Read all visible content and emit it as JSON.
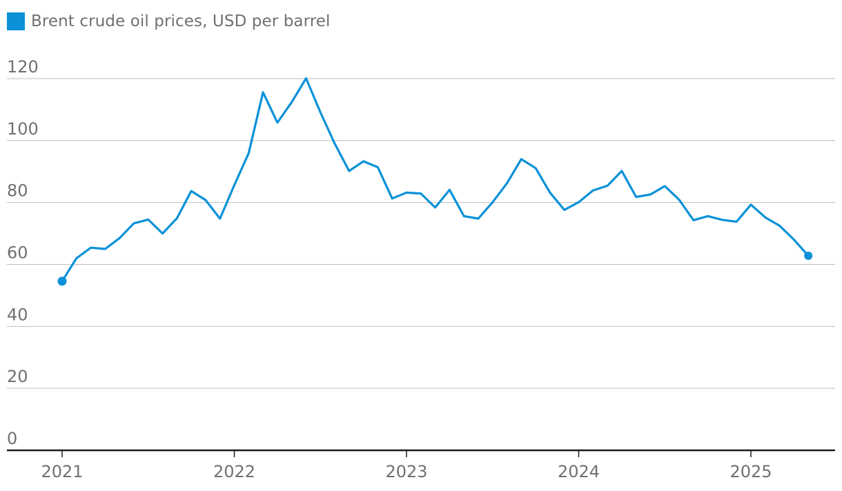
{
  "legend": {
    "label": "Brent crude oil prices, USD per barrel",
    "color": "#0a91d8"
  },
  "chart_data": {
    "type": "line",
    "title": "",
    "xlabel": "",
    "ylabel": "",
    "legend_position": "top-left",
    "grid": true,
    "ylim": [
      0,
      120
    ],
    "y_ticks": [
      "0",
      "20",
      "40",
      "60",
      "80",
      "100",
      "120"
    ],
    "x_ticks": [
      "2021",
      "2022",
      "2023",
      "2024",
      "2025"
    ],
    "series": [
      {
        "name": "Brent crude oil prices, USD per barrel",
        "color": "#0a91d8",
        "x": [
          "2021-01",
          "2021-02",
          "2021-03",
          "2021-04",
          "2021-05",
          "2021-06",
          "2021-07",
          "2021-08",
          "2021-09",
          "2021-10",
          "2021-11",
          "2021-12",
          "2022-01",
          "2022-02",
          "2022-03",
          "2022-04",
          "2022-05",
          "2022-06",
          "2022-07",
          "2022-08",
          "2022-09",
          "2022-10",
          "2022-11",
          "2022-12",
          "2023-01",
          "2023-02",
          "2023-03",
          "2023-04",
          "2023-05",
          "2023-06",
          "2023-07",
          "2023-08",
          "2023-09",
          "2023-10",
          "2023-11",
          "2023-12",
          "2024-01",
          "2024-02",
          "2024-03",
          "2024-04",
          "2024-05",
          "2024-06",
          "2024-07",
          "2024-08",
          "2024-09",
          "2024-10",
          "2024-11",
          "2024-12",
          "2025-01",
          "2025-02",
          "2025-03",
          "2025-04",
          "2025-05"
        ],
        "values": [
          54.6,
          62.0,
          65.4,
          65.0,
          68.5,
          73.3,
          74.5,
          70.0,
          74.9,
          83.7,
          80.8,
          74.8,
          85.6,
          95.9,
          115.6,
          105.8,
          112.4,
          120.1,
          109.1,
          99.0,
          90.2,
          93.3,
          91.4,
          81.3,
          83.2,
          82.9,
          78.4,
          84.1,
          75.6,
          74.8,
          80.1,
          86.2,
          94.0,
          91.1,
          83.2,
          77.6,
          80.1,
          83.9,
          85.4,
          90.2,
          81.8,
          82.6,
          85.3,
          80.9,
          74.3,
          75.6,
          74.4,
          73.8,
          79.3,
          75.2,
          72.5,
          68.0,
          62.8
        ]
      }
    ]
  }
}
